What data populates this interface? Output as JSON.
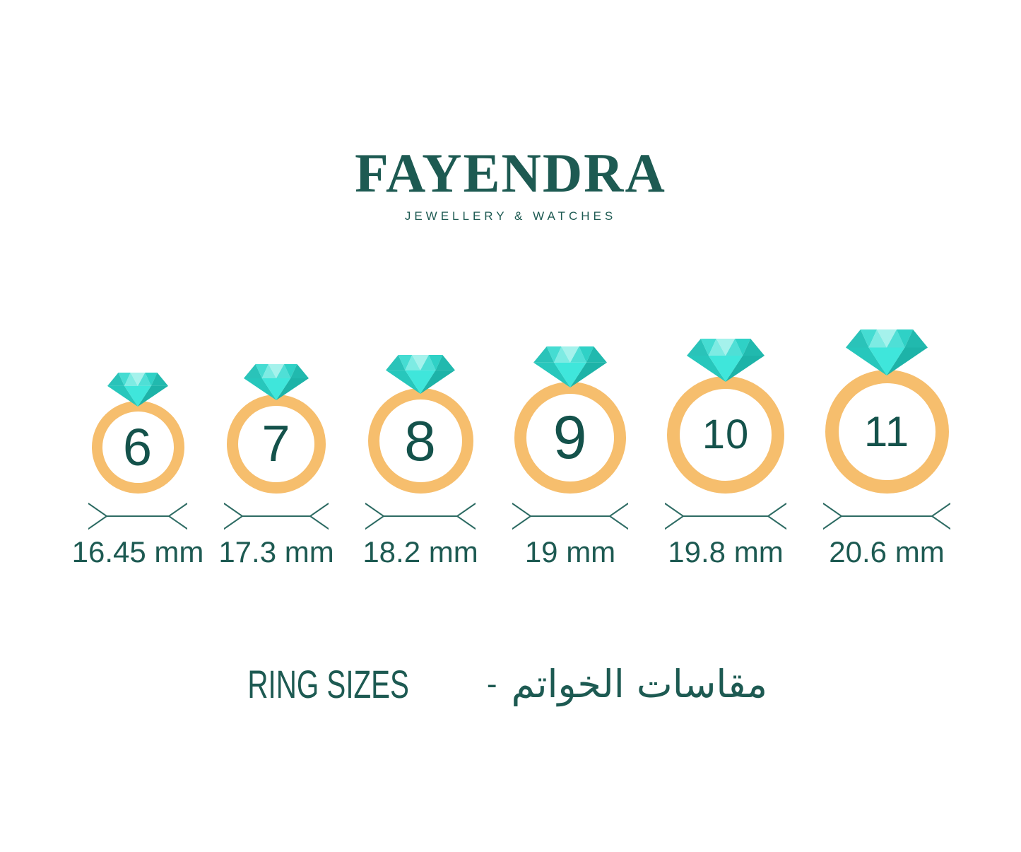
{
  "brand": {
    "name": "FAYENDRA",
    "tagline": "JEWELLERY & WATCHES"
  },
  "rings": [
    {
      "size": "6",
      "diameter": "16.45 mm"
    },
    {
      "size": "7",
      "diameter": "17.3 mm"
    },
    {
      "size": "8",
      "diameter": "18.2 mm"
    },
    {
      "size": "9",
      "diameter": "19 mm"
    },
    {
      "size": "10",
      "diameter": "19.8 mm"
    },
    {
      "size": "11",
      "diameter": "20.6 mm"
    }
  ],
  "footer": {
    "title_en": "RING SIZES",
    "separator": "-",
    "title_ar": "مقاسات الخواتم"
  },
  "icons": {
    "diamond": "faceted-diamond-svg",
    "band": "gold-ring-band-circle",
    "measure": "double-ended-measure-arrow"
  },
  "colors": {
    "teal": "#1d5a52",
    "digit": "#14524b",
    "band": "#f6be6d",
    "measure": "#2d6b63",
    "background": "#ffffff",
    "diamond_crown": [
      "#2ac3b9",
      "#45dcd2",
      "#7debe3",
      "#a5f2ec",
      "#4fdfd6",
      "#2fd1c6",
      "#21b9ae"
    ],
    "diamond_pavilion": [
      "#27c7bc",
      "#3fe6db",
      "#1db3a8"
    ]
  }
}
